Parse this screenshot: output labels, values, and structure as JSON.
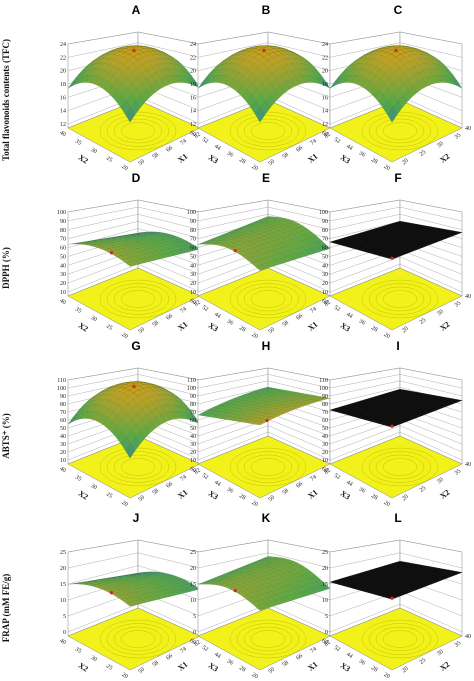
{
  "chart_data": {
    "type": "surface",
    "rows": [
      {
        "ylabel": "Total flavonoids contents (TFC)",
        "zticks": [
          "24",
          "22",
          "20",
          "18",
          "16",
          "14",
          "12"
        ],
        "panels": [
          {
            "letter": "A",
            "shape": "dome",
            "xname": "X1",
            "yname": "X2",
            "xticks": [
              "50",
              "58",
              "66",
              "74",
              "82"
            ],
            "yticks": [
              "20",
              "25",
              "30",
              "35",
              "40"
            ],
            "cornerTicks": [
              "90"
            ]
          },
          {
            "letter": "B",
            "shape": "dome",
            "xname": "X1",
            "yname": "X3",
            "xticks": [
              "50",
              "58",
              "66",
              "74",
              "82"
            ],
            "yticks": [
              "20",
              "28",
              "36",
              "44",
              "52",
              "60"
            ],
            "cornerTicks": [
              "90"
            ]
          },
          {
            "letter": "C",
            "shape": "dome",
            "xname": "X2",
            "yname": "X3",
            "xticks": [
              "20",
              "25",
              "30",
              "35"
            ],
            "yticks": [
              "20",
              "28",
              "36",
              "44",
              "52",
              "60"
            ],
            "cornerTicks": [
              "40"
            ]
          }
        ]
      },
      {
        "ylabel": "DPPH (%)",
        "zticks": [
          "100",
          "90",
          "80",
          "70",
          "60",
          "50",
          "40",
          "30",
          "20",
          "10"
        ],
        "panels": [
          {
            "letter": "D",
            "shape": "saddle",
            "xname": "X1",
            "yname": "X2",
            "xticks": [
              "50",
              "58",
              "66",
              "74",
              "82"
            ],
            "yticks": [
              "20",
              "25",
              "30",
              "35",
              "40"
            ],
            "cornerTicks": [
              "90"
            ]
          },
          {
            "letter": "E",
            "shape": "wave",
            "xname": "X1",
            "yname": "X3",
            "xticks": [
              "50",
              "58",
              "66",
              "74",
              "82"
            ],
            "yticks": [
              "20",
              "28",
              "36",
              "44",
              "52",
              "60"
            ],
            "cornerTicks": [
              "90"
            ]
          },
          {
            "letter": "F",
            "shape": "plane",
            "xname": "X2",
            "yname": "X3",
            "xticks": [
              "20",
              "25",
              "30",
              "35"
            ],
            "yticks": [
              "20",
              "28",
              "36",
              "44",
              "52",
              "60"
            ],
            "cornerTicks": [
              "40"
            ]
          }
        ]
      },
      {
        "ylabel": "ABTS⁺ (%)",
        "zticks": [
          "110",
          "100",
          "90",
          "80",
          "70",
          "60",
          "50",
          "40",
          "30",
          "20",
          "10"
        ],
        "panels": [
          {
            "letter": "G",
            "shape": "dome",
            "xname": "X1",
            "yname": "X2",
            "xticks": [
              "50",
              "58",
              "66",
              "74",
              "82"
            ],
            "yticks": [
              "20",
              "25",
              "30",
              "35",
              "40"
            ],
            "cornerTicks": [
              "90"
            ]
          },
          {
            "letter": "H",
            "shape": "ridge",
            "xname": "X1",
            "yname": "X3",
            "xticks": [
              "50",
              "58",
              "66",
              "74",
              "82"
            ],
            "yticks": [
              "20",
              "28",
              "36",
              "44",
              "52",
              "60"
            ],
            "cornerTicks": [
              "90"
            ]
          },
          {
            "letter": "I",
            "shape": "plane",
            "xname": "X2",
            "yname": "X3",
            "xticks": [
              "20",
              "25",
              "30",
              "35"
            ],
            "yticks": [
              "20",
              "28",
              "36",
              "44",
              "52",
              "60"
            ],
            "cornerTicks": [
              "40"
            ]
          }
        ]
      },
      {
        "ylabel": "FRAP (mM FE/g)",
        "zticks": [
          "25",
          "20",
          "15",
          "10",
          "5",
          "0"
        ],
        "panels": [
          {
            "letter": "J",
            "shape": "saddle",
            "xname": "X1",
            "yname": "X2",
            "xticks": [
              "50",
              "58",
              "66",
              "74",
              "82"
            ],
            "yticks": [
              "20",
              "25",
              "30",
              "35",
              "40"
            ],
            "cornerTicks": [
              "90"
            ]
          },
          {
            "letter": "K",
            "shape": "wave",
            "xname": "X1",
            "yname": "X3",
            "xticks": [
              "50",
              "58",
              "66",
              "74",
              "82"
            ],
            "yticks": [
              "20",
              "28",
              "36",
              "44",
              "52",
              "60"
            ],
            "cornerTicks": [
              "90"
            ]
          },
          {
            "letter": "L",
            "shape": "plane",
            "xname": "X2",
            "yname": "X3",
            "xticks": [
              "20",
              "25",
              "30",
              "35"
            ],
            "yticks": [
              "20",
              "28",
              "36",
              "44",
              "52",
              "60"
            ],
            "cornerTicks": [
              "40"
            ]
          }
        ]
      }
    ]
  },
  "colors": {
    "floor": "#f2f21a",
    "floorContour": "#b8b800",
    "surfaceHigh": "#c8a020",
    "surfaceMid": "#5aa845",
    "surfaceLow": "#1e7ab0",
    "planeDark": "#111111",
    "grid": "#9a9a9a",
    "marker": "#e02020"
  }
}
